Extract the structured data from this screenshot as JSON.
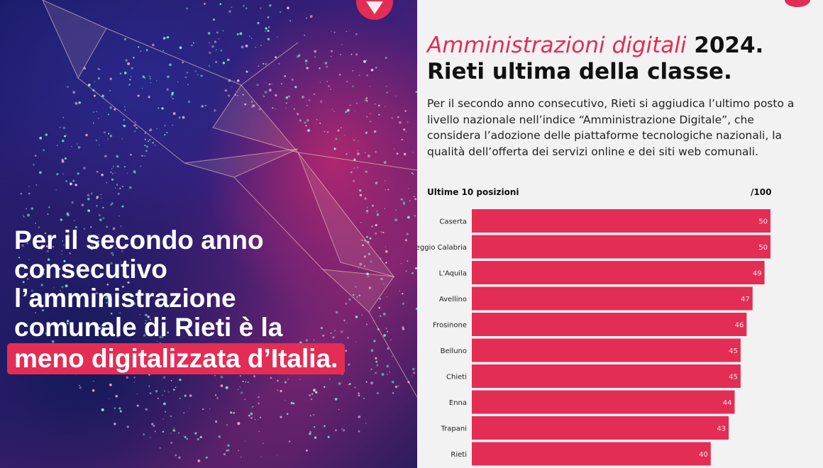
{
  "left_panel": {
    "headline_lines": [
      "Per il secondo anno",
      "consecutivo",
      "l’amministrazione",
      "comunale di Rieti è la"
    ],
    "headline_highlight": "meno digitalizzata d’Italia.",
    "colors": {
      "highlight": "#e32d55",
      "text": "#ffffff"
    }
  },
  "right_panel": {
    "title_italic": "Amministrazioni digitali",
    "title_year": " 2024.",
    "title_line2": "Rieti ultima della classe.",
    "description": "Per il secondo anno consecutivo, Rieti si aggiudica l’ultimo posto a livello nazionale nell’indice “Amministrazione Digitale”, che considera l’adozione delle piattaforme tecnologiche nazionali, la qualità dell’offerta dei servizi online e dei siti web comunali.",
    "chart_header": "Ultime 10 posizioni",
    "chart_max_label": "/100"
  },
  "chart_data": {
    "type": "bar",
    "orientation": "horizontal",
    "categories": [
      "Caserta",
      "Reggio Calabria",
      "L'Aquila",
      "Avellino",
      "Frosinone",
      "Belluno",
      "Chieti",
      "Enna",
      "Trapani",
      "Rieti"
    ],
    "values": [
      50,
      50,
      49,
      47,
      46,
      45,
      45,
      44,
      43,
      40
    ],
    "title": "Ultime 10 posizioni",
    "xlim": [
      0,
      50
    ],
    "color": "#e32d55",
    "grid": false
  },
  "icons": [
    "logo-icon"
  ]
}
